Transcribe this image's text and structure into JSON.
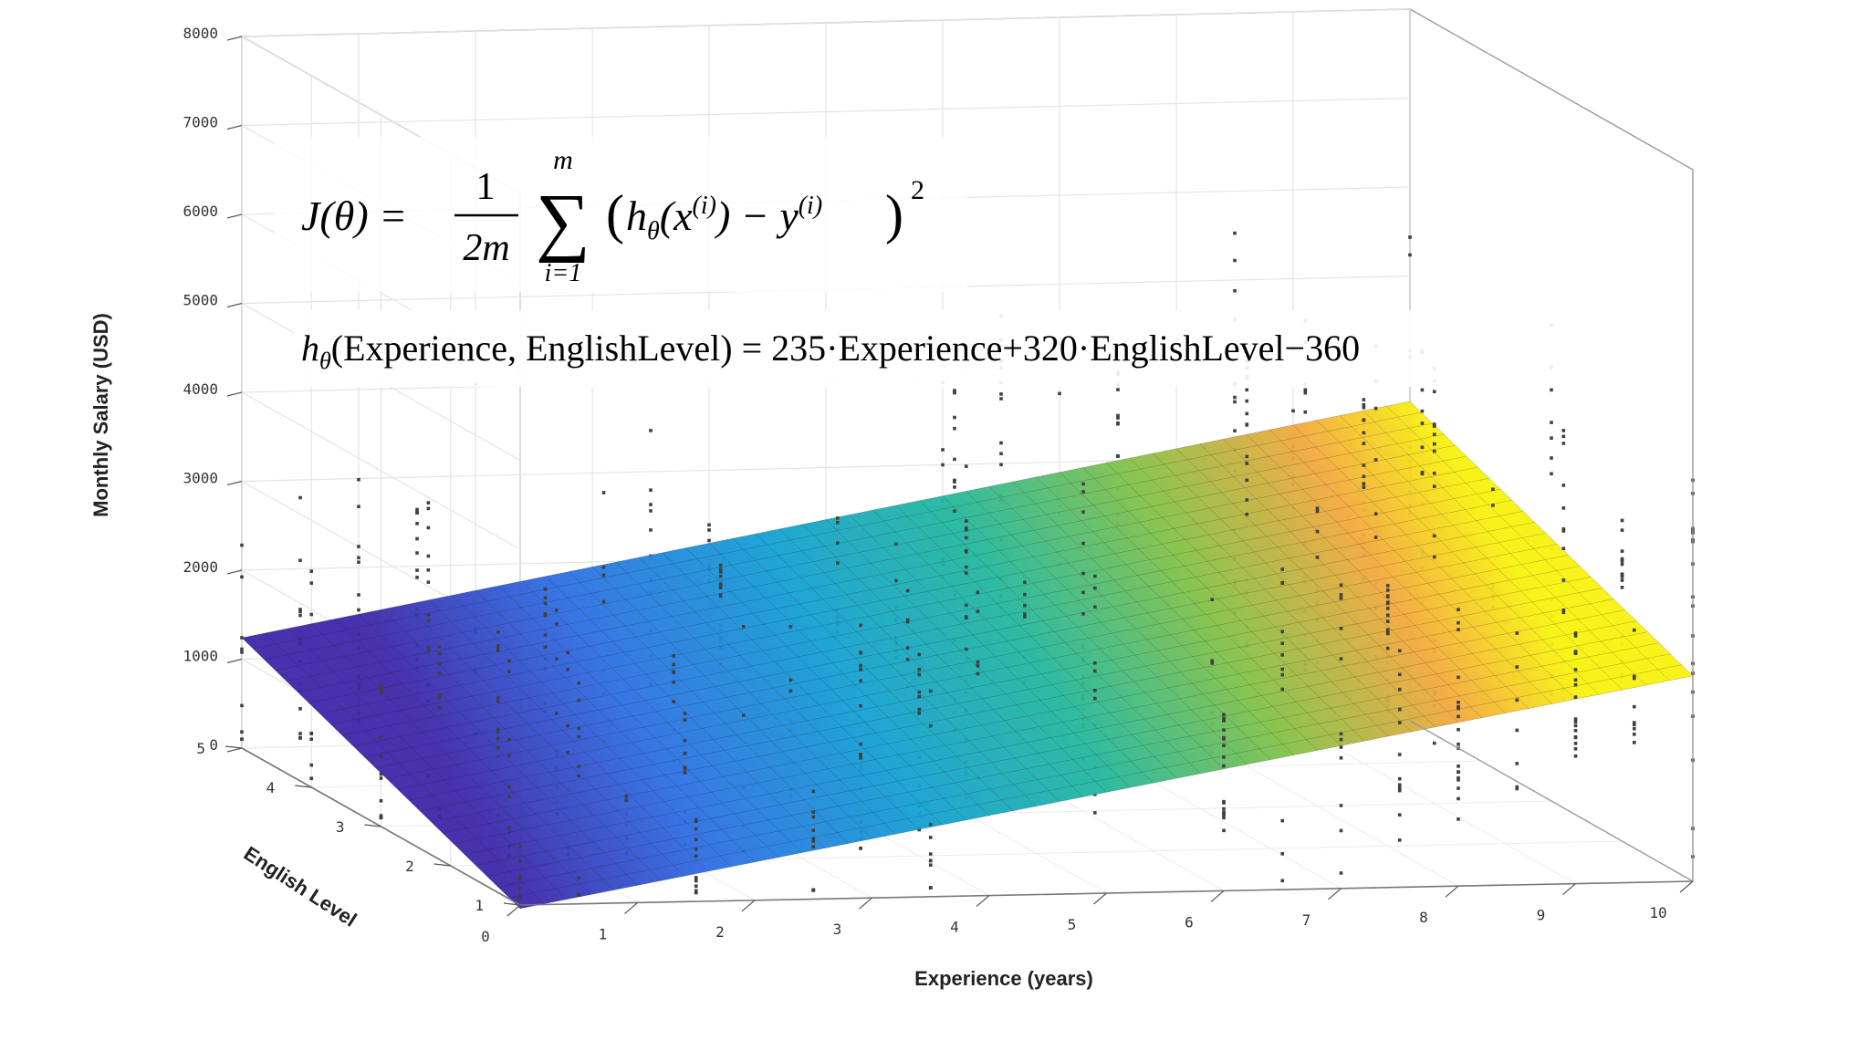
{
  "chart_data": {
    "type": "surface-scatter-3d",
    "z_label": "Monthly Salary (USD)",
    "x_label": "Experience (years)",
    "y_label": "English Level",
    "z_ticks": [
      "8000",
      "7000",
      "6000",
      "5000",
      "4000",
      "3000",
      "2000",
      "1000",
      "0"
    ],
    "x_ticks": [
      "0",
      "1",
      "2",
      "3",
      "4",
      "5",
      "6",
      "7",
      "8",
      "9",
      "10"
    ],
    "y_ticks": [
      "5",
      "4",
      "3",
      "2",
      "1"
    ],
    "xlim": [
      0,
      10
    ],
    "ylim": [
      1,
      5
    ],
    "zlim": [
      0,
      8000
    ],
    "grid": true,
    "surface": {
      "model": "235*Experience + 320*EnglishLevel - 360",
      "coef_experience": 235,
      "coef_english": 320,
      "intercept": -360,
      "corner_values": {
        "x0_y1": -40,
        "x0_y5": 1240,
        "x10_y1": 2310,
        "x10_y5": 3590
      },
      "colormap": [
        "#3e26a8",
        "#2e6ee3",
        "#14a0d3",
        "#23b79e",
        "#83c147",
        "#f3a83d",
        "#f8f20e"
      ]
    },
    "scatter_color": "#404040",
    "equations": {
      "cost": {
        "lhs": "J(θ) = ",
        "frac_num": "1",
        "frac_den": "2m",
        "sum_top": "m",
        "sum_sym": "∑",
        "sum_bottom": "i=1",
        "body": "(hθ(x(i)) − y(i))",
        "body_h": "h",
        "body_theta": "θ",
        "body_mid1": "(x",
        "body_sup_i": "(i)",
        "body_mid2": ") − y",
        "exp": "2",
        "open_paren": "(",
        "close_paren": ")"
      },
      "hypothesis": {
        "h": "h",
        "theta": "θ",
        "rest": "(Experience, EnglishLevel) = 235·Experience+320·EnglishLevel−360"
      }
    }
  }
}
